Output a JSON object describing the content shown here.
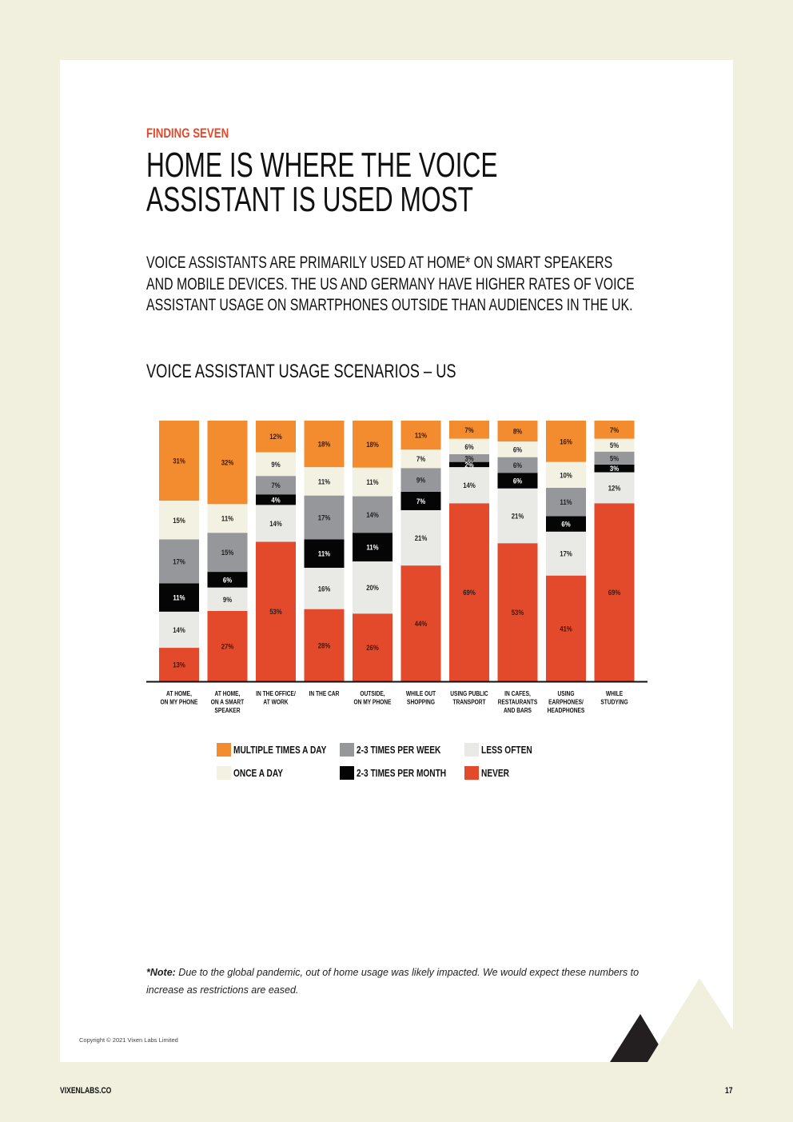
{
  "header": {
    "kicker": "FINDING SEVEN",
    "title_lines": [
      "HOME IS WHERE THE VOICE",
      "ASSISTANT IS USED MOST"
    ],
    "intro_lines": [
      "VOICE ASSISTANTS ARE PRIMARILY USED AT HOME* ON SMART SPEAKERS",
      "AND MOBILE DEVICES. THE US AND GERMANY HAVE HIGHER RATES OF VOICE",
      "ASSISTANT USAGE ON SMARTPHONES OUTSIDE THAN AUDIENCES IN THE UK."
    ]
  },
  "chart_data": {
    "type": "bar",
    "stacked": true,
    "title": "VOICE ASSISTANT USAGE SCENARIOS – US",
    "unit": "%",
    "categories": [
      [
        "AT HOME,",
        "ON MY PHONE"
      ],
      [
        "AT HOME,",
        "ON A SMART",
        "SPEAKER"
      ],
      [
        "IN THE OFFICE/",
        "AT WORK"
      ],
      [
        "IN THE CAR"
      ],
      [
        "OUTSIDE,",
        "ON MY PHONE"
      ],
      [
        "WHILE OUT",
        "SHOPPING"
      ],
      [
        "USING PUBLIC",
        "TRANSPORT"
      ],
      [
        "IN CAFES,",
        "RESTAURANTS",
        "AND BARS"
      ],
      [
        "USING",
        "EARPHONES/",
        "HEADPHONES"
      ],
      [
        "WHILE",
        "STUDYING"
      ]
    ],
    "series": [
      {
        "name": "NEVER",
        "color": "#E24A2B",
        "text_color": "#3a1a10",
        "values": [
          13,
          27,
          53,
          28,
          26,
          44,
          69,
          53,
          41,
          69
        ]
      },
      {
        "name": "LESS OFTEN",
        "color": "#E9E9E5",
        "text_color": "#222222",
        "values": [
          14,
          9,
          14,
          16,
          20,
          21,
          14,
          21,
          17,
          12
        ]
      },
      {
        "name": "2-3 TIMES PER MONTH",
        "color": "#050505",
        "text_color": "#ffffff",
        "values": [
          11,
          6,
          4,
          11,
          11,
          7,
          2,
          6,
          6,
          3
        ]
      },
      {
        "name": "2-3 TIMES PER WEEK",
        "color": "#96979A",
        "text_color": "#222222",
        "values": [
          17,
          15,
          7,
          17,
          14,
          9,
          3,
          6,
          11,
          5
        ]
      },
      {
        "name": "ONCE A DAY",
        "color": "#F3F2E2",
        "text_color": "#222222",
        "values": [
          15,
          11,
          9,
          11,
          11,
          7,
          6,
          6,
          10,
          5
        ]
      },
      {
        "name": "MULTIPLE TIMES A DAY",
        "color": "#F28C2E",
        "text_color": "#3a1a10",
        "values": [
          31,
          32,
          12,
          18,
          18,
          11,
          7,
          8,
          16,
          7
        ]
      }
    ],
    "legend_order": [
      "MULTIPLE TIMES A DAY",
      "2-3 TIMES PER WEEK",
      "LESS OFTEN",
      "ONCE A DAY",
      "2-3 TIMES PER MONTH",
      "NEVER"
    ],
    "ylim": [
      0,
      100
    ],
    "grid": false,
    "legend_position": "bottom"
  },
  "note": {
    "label": "*Note:",
    "text": " Due to the global pandemic, out of home usage was likely impacted. We would expect these numbers to increase as restrictions are eased."
  },
  "footer": {
    "copyright": "Copyright © 2021 Vixen Labs Limited",
    "site": "VIXENLABS.CO",
    "page_number": "17"
  }
}
